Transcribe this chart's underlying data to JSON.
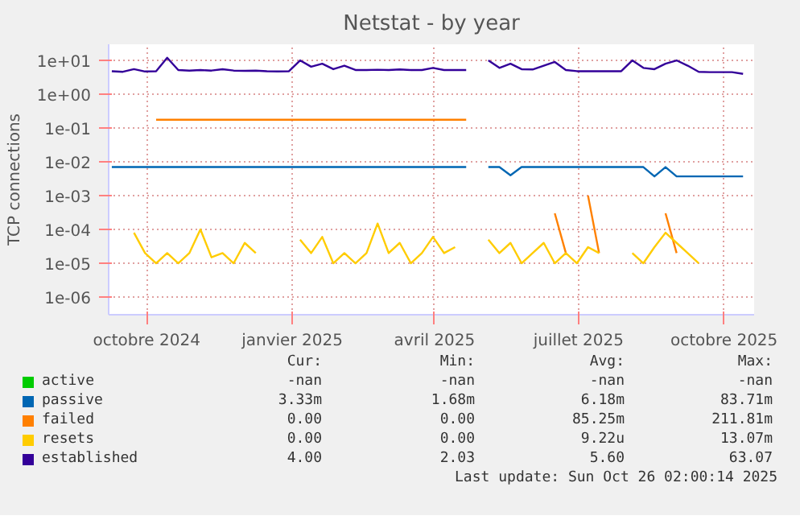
{
  "chart_data": {
    "type": "line",
    "title": "Netstat - by year",
    "ylabel": "TCP connections",
    "log": "y",
    "grid": true,
    "legend": "bottom",
    "marker": "none",
    "line_style": "solid",
    "xlim": [
      "2024-09-07",
      "2025-10-20"
    ],
    "xticks": [
      {
        "value": "2024-10-01",
        "label": "octobre 2024"
      },
      {
        "value": "2025-01-01",
        "label": "janvier 2025"
      },
      {
        "value": "2025-04-01",
        "label": "avril 2025"
      },
      {
        "value": "2025-07-01",
        "label": "juillet 2025"
      },
      {
        "value": "2025-10-01",
        "label": "octobre 2025"
      }
    ],
    "ylim": [
      3e-07,
      30
    ],
    "yticks": [
      {
        "value": 1e-06,
        "label": "1e-06"
      },
      {
        "value": 1e-05,
        "label": "1e-05"
      },
      {
        "value": 0.0001,
        "label": "1e-04"
      },
      {
        "value": 0.001,
        "label": "1e-03"
      },
      {
        "value": 0.01,
        "label": "1e-02"
      },
      {
        "value": 0.1,
        "label": "1e-01"
      },
      {
        "value": 1,
        "label": "1e+00"
      },
      {
        "value": 10,
        "label": "1e+01"
      }
    ],
    "x": [
      "2024-09-09",
      "2024-09-16",
      "2024-09-23",
      "2024-09-30",
      "2024-10-07",
      "2024-10-14",
      "2024-10-21",
      "2024-10-28",
      "2024-11-04",
      "2024-11-11",
      "2024-11-18",
      "2024-11-25",
      "2024-12-02",
      "2024-12-09",
      "2024-12-16",
      "2024-12-23",
      "2024-12-30",
      "2025-01-06",
      "2025-01-13",
      "2025-01-20",
      "2025-01-27",
      "2025-02-03",
      "2025-02-10",
      "2025-02-17",
      "2025-02-24",
      "2025-03-03",
      "2025-03-10",
      "2025-03-17",
      "2025-03-24",
      "2025-03-31",
      "2025-04-07",
      "2025-04-14",
      "2025-04-21",
      "2025-04-28",
      "2025-05-05",
      "2025-05-12",
      "2025-05-19",
      "2025-05-26",
      "2025-06-02",
      "2025-06-09",
      "2025-06-16",
      "2025-06-23",
      "2025-06-30",
      "2025-07-07",
      "2025-07-14",
      "2025-07-21",
      "2025-07-28",
      "2025-08-04",
      "2025-08-11",
      "2025-08-18",
      "2025-08-25",
      "2025-09-01",
      "2025-09-08",
      "2025-09-15",
      "2025-09-22",
      "2025-09-29",
      "2025-10-06",
      "2025-10-13"
    ],
    "series": [
      {
        "name": "active",
        "color": "#00cc00",
        "values": [
          null,
          null,
          null,
          null,
          null,
          null,
          null,
          null,
          null,
          null,
          null,
          null,
          null,
          null,
          null,
          null,
          null,
          null,
          null,
          null,
          null,
          null,
          null,
          null,
          null,
          null,
          null,
          null,
          null,
          null,
          null,
          null,
          null,
          null,
          null,
          null,
          null,
          null,
          null,
          null,
          null,
          null,
          null,
          null,
          null,
          null,
          null,
          null,
          null,
          null,
          null,
          null,
          null,
          null,
          null,
          null,
          null,
          null
        ]
      },
      {
        "name": "passive",
        "color": "#0066b3",
        "values": [
          0.007,
          0.007,
          0.007,
          0.007,
          0.007,
          0.007,
          0.007,
          0.007,
          0.007,
          0.007,
          0.007,
          0.007,
          0.007,
          0.007,
          0.007,
          0.007,
          0.007,
          0.007,
          0.007,
          0.007,
          0.007,
          0.007,
          0.007,
          0.007,
          0.007,
          0.007,
          0.007,
          0.007,
          0.007,
          0.007,
          0.007,
          0.007,
          0.007,
          null,
          0.007,
          0.007,
          0.004,
          0.007,
          0.007,
          0.007,
          0.007,
          0.007,
          0.007,
          0.007,
          0.007,
          0.007,
          0.007,
          0.007,
          0.007,
          0.0037,
          0.007,
          0.0037,
          0.0037,
          0.0037,
          0.0037,
          0.0037,
          0.0037,
          0.0037
        ]
      },
      {
        "name": "failed",
        "color": "#ff8000",
        "values": [
          null,
          null,
          null,
          null,
          0.176,
          0.176,
          0.176,
          0.176,
          0.176,
          0.176,
          0.176,
          0.176,
          0.176,
          0.176,
          0.176,
          0.176,
          0.176,
          0.176,
          0.176,
          0.176,
          0.176,
          0.176,
          0.176,
          0.176,
          0.176,
          0.176,
          0.176,
          0.176,
          0.176,
          0.176,
          0.176,
          0.176,
          0.176,
          null,
          null,
          null,
          null,
          null,
          null,
          null,
          0.0003,
          2e-05,
          null,
          0.001,
          2e-05,
          null,
          null,
          null,
          null,
          null,
          0.0003,
          2e-05,
          null,
          null,
          null,
          null,
          null,
          null
        ]
      },
      {
        "name": "resets",
        "color": "#ffcc00",
        "values": [
          null,
          null,
          8e-05,
          2e-05,
          1e-05,
          2e-05,
          1e-05,
          2e-05,
          0.0001,
          1.5e-05,
          2e-05,
          1e-05,
          4e-05,
          2e-05,
          null,
          null,
          null,
          5e-05,
          2e-05,
          6e-05,
          1e-05,
          2e-05,
          1e-05,
          2e-05,
          0.00015,
          2e-05,
          4e-05,
          1e-05,
          2e-05,
          6e-05,
          2e-05,
          3e-05,
          null,
          null,
          5e-05,
          2e-05,
          4e-05,
          1e-05,
          2e-05,
          4e-05,
          1e-05,
          2e-05,
          1e-05,
          3e-05,
          2e-05,
          null,
          null,
          2e-05,
          1e-05,
          3e-05,
          8e-05,
          4e-05,
          2e-05,
          1e-05,
          null,
          null,
          null,
          null
        ]
      },
      {
        "name": "established",
        "color": "#330099",
        "values": [
          4.8,
          4.6,
          5.5,
          4.7,
          4.8,
          12,
          5.2,
          5.0,
          5.2,
          5.0,
          5.5,
          5.0,
          4.9,
          5.0,
          4.8,
          4.7,
          4.8,
          10,
          6.5,
          8,
          5.5,
          7,
          5.2,
          5.2,
          5.3,
          5.2,
          5.4,
          5.2,
          5.2,
          6,
          5.2,
          5.2,
          5.2,
          null,
          10,
          6,
          8,
          5.5,
          5.4,
          7,
          9,
          5.2,
          4.8,
          4.8,
          4.8,
          4.8,
          4.8,
          10,
          6,
          5.5,
          8,
          10,
          7,
          4.6,
          4.5,
          4.5,
          4.5,
          4.0
        ]
      }
    ],
    "annotations": [
      "Cur:",
      "Min:",
      "Avg:",
      "Max:",
      "-nan",
      "-nan",
      "-nan",
      "-nan",
      "3.33m",
      "1.68m",
      "6.18m",
      "83.71m",
      "0.00",
      "0.00",
      "85.25m",
      "211.81m",
      "0.00",
      "0.00",
      "9.22u",
      "13.07m",
      "4.00",
      "2.03",
      "5.60",
      "63.07",
      "Last update: Sun Oct 26 02:00:14 2025"
    ]
  }
}
